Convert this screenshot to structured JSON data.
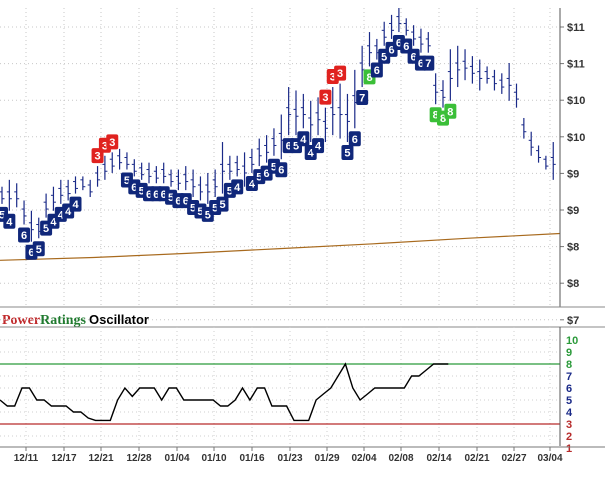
{
  "title": {
    "brand_power": "Power",
    "brand_ratings": "Ratings",
    "suffix": "Oscillator"
  },
  "colors": {
    "bars": "#1a2a88",
    "badge_blue": "#10277a",
    "badge_green": "#3bbf38",
    "badge_red": "#e0221f",
    "ma": "#a86a1e",
    "osc_line": "#000000",
    "upper_band": "#2b9a3a",
    "lower_band": "#b72b2b"
  },
  "chart_data": [
    {
      "type": "ohlc",
      "title": "",
      "y_ticks": [
        "$11",
        "$11",
        "$10",
        "$10",
        "$9",
        "$9",
        "$8",
        "$8",
        "$7"
      ],
      "grid": true,
      "moving_average": [
        7.78,
        7.82,
        7.88,
        7.95,
        8.02,
        8.1,
        8.17
      ],
      "bars": [
        [
          8.85,
          8.6
        ],
        [
          8.95,
          8.5
        ],
        [
          8.9,
          8.55
        ],
        [
          8.65,
          8.3
        ],
        [
          8.5,
          8.05
        ],
        [
          8.4,
          8.1
        ],
        [
          8.75,
          8.4
        ],
        [
          8.85,
          8.5
        ],
        [
          8.95,
          8.6
        ],
        [
          8.95,
          8.65
        ],
        [
          9.0,
          8.75
        ],
        [
          9.0,
          8.8
        ],
        [
          8.95,
          8.7
        ],
        [
          9.15,
          8.85
        ],
        [
          9.3,
          8.95
        ],
        [
          9.35,
          9.05
        ],
        [
          9.4,
          9.1
        ],
        [
          9.35,
          9.1
        ],
        [
          9.25,
          9.0
        ],
        [
          9.2,
          8.95
        ],
        [
          9.2,
          8.9
        ],
        [
          9.15,
          8.9
        ],
        [
          9.2,
          8.9
        ],
        [
          9.1,
          8.85
        ],
        [
          9.1,
          8.8
        ],
        [
          9.15,
          8.8
        ],
        [
          9.1,
          8.7
        ],
        [
          9.0,
          8.65
        ],
        [
          9.05,
          8.6
        ],
        [
          9.1,
          8.7
        ],
        [
          9.5,
          8.75
        ],
        [
          9.3,
          8.95
        ],
        [
          9.3,
          9.0
        ],
        [
          9.35,
          8.85
        ],
        [
          9.4,
          9.05
        ],
        [
          9.55,
          9.15
        ],
        [
          9.6,
          9.2
        ],
        [
          9.7,
          9.3
        ],
        [
          9.9,
          9.25
        ],
        [
          10.3,
          9.6
        ],
        [
          10.25,
          9.6
        ],
        [
          10.2,
          9.7
        ],
        [
          10.1,
          9.5
        ],
        [
          10.15,
          9.6
        ],
        [
          10.0,
          9.5
        ],
        [
          10.3,
          9.6
        ],
        [
          10.35,
          9.55
        ],
        [
          10.2,
          9.5
        ],
        [
          10.55,
          9.7
        ],
        [
          10.9,
          10.3
        ],
        [
          11.1,
          10.6
        ],
        [
          11.0,
          10.7
        ],
        [
          11.25,
          10.9
        ],
        [
          11.35,
          11.0
        ],
        [
          11.45,
          11.1
        ],
        [
          11.3,
          11.05
        ],
        [
          11.2,
          10.9
        ],
        [
          11.15,
          10.8
        ],
        [
          11.1,
          10.8
        ],
        [
          10.5,
          10.05
        ],
        [
          10.4,
          10.0
        ],
        [
          10.85,
          10.1
        ],
        [
          10.9,
          10.3
        ],
        [
          10.85,
          10.4
        ],
        [
          10.75,
          10.35
        ],
        [
          10.7,
          10.25
        ],
        [
          10.6,
          10.35
        ],
        [
          10.55,
          10.25
        ],
        [
          10.5,
          10.2
        ],
        [
          10.65,
          10.1
        ],
        [
          10.35,
          10.0
        ],
        [
          9.85,
          9.55
        ],
        [
          9.65,
          9.3
        ],
        [
          9.45,
          9.2
        ],
        [
          9.3,
          9.1
        ],
        [
          9.5,
          8.95
        ]
      ],
      "badges": [
        {
          "bar": 0,
          "label": "5",
          "color": "blue",
          "pos": "below"
        },
        {
          "bar": 1,
          "label": "4",
          "color": "blue",
          "pos": "below"
        },
        {
          "bar": 3,
          "label": "6",
          "color": "blue",
          "pos": "below"
        },
        {
          "bar": 4,
          "label": "6",
          "color": "blue",
          "pos": "below"
        },
        {
          "bar": 5,
          "label": "5",
          "color": "blue",
          "pos": "below"
        },
        {
          "bar": 6,
          "label": "5",
          "color": "blue",
          "pos": "below"
        },
        {
          "bar": 7,
          "label": "4",
          "color": "blue",
          "pos": "below"
        },
        {
          "bar": 8,
          "label": "4",
          "color": "blue",
          "pos": "below"
        },
        {
          "bar": 9,
          "label": "4",
          "color": "blue",
          "pos": "below"
        },
        {
          "bar": 10,
          "label": "4",
          "color": "blue",
          "pos": "below"
        },
        {
          "bar": 13,
          "label": "3",
          "color": "red",
          "pos": "above"
        },
        {
          "bar": 14,
          "label": "3",
          "color": "red",
          "pos": "above"
        },
        {
          "bar": 15,
          "label": "3",
          "color": "red",
          "pos": "above"
        },
        {
          "bar": 17,
          "label": "5",
          "color": "blue",
          "pos": "below"
        },
        {
          "bar": 18,
          "label": "6",
          "color": "blue",
          "pos": "below"
        },
        {
          "bar": 19,
          "label": "5",
          "color": "blue",
          "pos": "below"
        },
        {
          "bar": 20,
          "label": "6",
          "color": "blue",
          "pos": "below"
        },
        {
          "bar": 21,
          "label": "6",
          "color": "blue",
          "pos": "below"
        },
        {
          "bar": 22,
          "label": "6",
          "color": "blue",
          "pos": "below"
        },
        {
          "bar": 23,
          "label": "5",
          "color": "blue",
          "pos": "below"
        },
        {
          "bar": 24,
          "label": "6",
          "color": "blue",
          "pos": "below"
        },
        {
          "bar": 25,
          "label": "6",
          "color": "blue",
          "pos": "below"
        },
        {
          "bar": 26,
          "label": "5",
          "color": "blue",
          "pos": "below"
        },
        {
          "bar": 27,
          "label": "5",
          "color": "blue",
          "pos": "below"
        },
        {
          "bar": 28,
          "label": "5",
          "color": "blue",
          "pos": "below"
        },
        {
          "bar": 29,
          "label": "5",
          "color": "blue",
          "pos": "below"
        },
        {
          "bar": 30,
          "label": "5",
          "color": "blue",
          "pos": "below"
        },
        {
          "bar": 31,
          "label": "5",
          "color": "blue",
          "pos": "below"
        },
        {
          "bar": 32,
          "label": "4",
          "color": "blue",
          "pos": "below"
        },
        {
          "bar": 34,
          "label": "4",
          "color": "blue",
          "pos": "below"
        },
        {
          "bar": 35,
          "label": "5",
          "color": "blue",
          "pos": "below"
        },
        {
          "bar": 36,
          "label": "6",
          "color": "blue",
          "pos": "below"
        },
        {
          "bar": 37,
          "label": "5",
          "color": "blue",
          "pos": "below"
        },
        {
          "bar": 38,
          "label": "6",
          "color": "blue",
          "pos": "below"
        },
        {
          "bar": 39,
          "label": "6",
          "color": "blue",
          "pos": "below"
        },
        {
          "bar": 40,
          "label": "5",
          "color": "blue",
          "pos": "below"
        },
        {
          "bar": 41,
          "label": "4",
          "color": "blue",
          "pos": "below"
        },
        {
          "bar": 42,
          "label": "4",
          "color": "blue",
          "pos": "below"
        },
        {
          "bar": 43,
          "label": "4",
          "color": "blue",
          "pos": "below"
        },
        {
          "bar": 44,
          "label": "3",
          "color": "red",
          "pos": "above"
        },
        {
          "bar": 45,
          "label": "3",
          "color": "red",
          "pos": "above"
        },
        {
          "bar": 46,
          "label": "3",
          "color": "red",
          "pos": "above"
        },
        {
          "bar": 47,
          "label": "5",
          "color": "blue",
          "pos": "below"
        },
        {
          "bar": 48,
          "label": "6",
          "color": "blue",
          "pos": "below"
        },
        {
          "bar": 49,
          "label": "7",
          "color": "blue",
          "pos": "below"
        },
        {
          "bar": 50,
          "label": "8",
          "color": "green",
          "pos": "below"
        },
        {
          "bar": 51,
          "label": "6",
          "color": "blue",
          "pos": "below"
        },
        {
          "bar": 52,
          "label": "5",
          "color": "blue",
          "pos": "below"
        },
        {
          "bar": 53,
          "label": "6",
          "color": "blue",
          "pos": "below"
        },
        {
          "bar": 54,
          "label": "6",
          "color": "blue",
          "pos": "below"
        },
        {
          "bar": 55,
          "label": "6",
          "color": "blue",
          "pos": "below"
        },
        {
          "bar": 56,
          "label": "6",
          "color": "blue",
          "pos": "below"
        },
        {
          "bar": 57,
          "label": "6",
          "color": "blue",
          "pos": "below"
        },
        {
          "bar": 58,
          "label": "7",
          "color": "blue",
          "pos": "below"
        },
        {
          "bar": 59,
          "label": "8",
          "color": "green",
          "pos": "below"
        },
        {
          "bar": 60,
          "label": "8",
          "color": "green",
          "pos": "below"
        },
        {
          "bar": 61,
          "label": "8",
          "color": "green",
          "pos": "below"
        }
      ]
    },
    {
      "type": "line",
      "title": "Oscillator",
      "y_ticks": [
        "10",
        "9",
        "8",
        "7",
        "6",
        "5",
        "4",
        "3",
        "2",
        "1"
      ],
      "y_tick_colors": [
        "#2b9a3a",
        "#2b9a3a",
        "#2b9a3a",
        "#1a2a88",
        "#1a2a88",
        "#1a2a88",
        "#1a2a88",
        "#b72b2b",
        "#b72b2b",
        "#b72b2b"
      ],
      "ylim": [
        1,
        10
      ],
      "upper_band": 8,
      "lower_band": 3,
      "x_ticks": [
        "12/11",
        "12/17",
        "12/21",
        "12/28",
        "01/04",
        "01/10",
        "01/16",
        "01/23",
        "01/29",
        "02/04",
        "02/08",
        "02/14",
        "02/21",
        "02/27",
        "03/04"
      ],
      "values": [
        5.0,
        4.5,
        4.5,
        6.0,
        6.0,
        5.0,
        5.0,
        4.5,
        4.5,
        4.5,
        4.0,
        4.0,
        3.5,
        3.3,
        3.3,
        3.3,
        5.0,
        6.0,
        5.3,
        6.0,
        6.0,
        6.0,
        5.0,
        6.0,
        6.0,
        5.0,
        5.0,
        5.0,
        5.0,
        5.0,
        4.5,
        4.5,
        5.0,
        6.0,
        5.0,
        6.0,
        6.0,
        4.5,
        4.5,
        4.5,
        3.3,
        3.3,
        3.3,
        5.0,
        5.5,
        6.0,
        7.0,
        8.0,
        6.0,
        5.0,
        5.5,
        6.0,
        6.0,
        6.0,
        6.0,
        6.0,
        7.0,
        7.0,
        7.5,
        8.0,
        8.0,
        8.0
      ]
    }
  ]
}
